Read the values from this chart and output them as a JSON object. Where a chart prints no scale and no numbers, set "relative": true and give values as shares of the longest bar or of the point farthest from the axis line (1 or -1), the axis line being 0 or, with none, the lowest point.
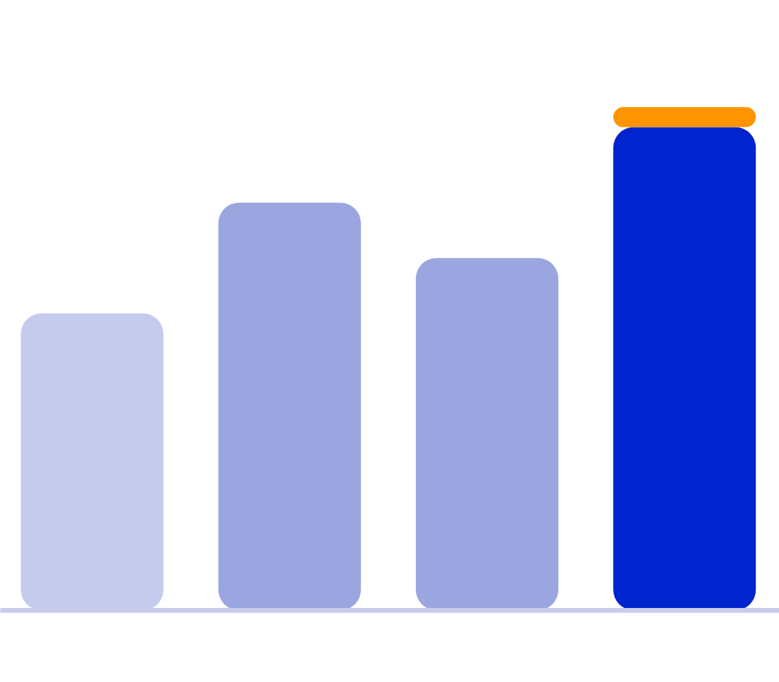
{
  "chart_data": {
    "type": "bar",
    "relative": true,
    "stacked": true,
    "categories": [
      null,
      null,
      null,
      null
    ],
    "series": [
      {
        "colors": [
          "#c5cbed",
          "#9ba6e0",
          "#9ba6e0",
          "#0024ce"
        ],
        "values": [
          0.59,
          0.81,
          0.7,
          0.96
        ]
      },
      {
        "color": "#ff9400",
        "values": [
          null,
          null,
          null,
          0.04
        ]
      }
    ]
  }
}
